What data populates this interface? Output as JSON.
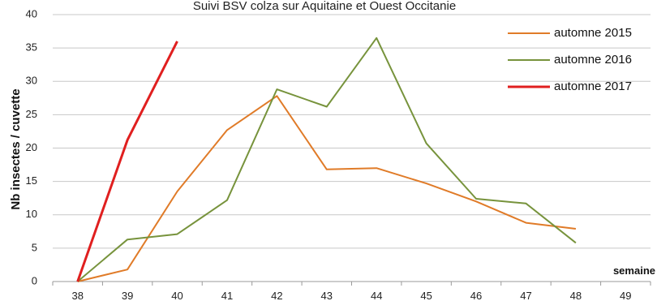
{
  "chart_data": {
    "type": "line",
    "title": "Suivi BSV colza sur Aquitaine et Ouest Occitanie",
    "xlabel": "semaine",
    "ylabel": "Nb insectes / cuvette",
    "categories": [
      "38",
      "39",
      "40",
      "41",
      "42",
      "43",
      "44",
      "45",
      "46",
      "47",
      "48",
      "49"
    ],
    "ylim": [
      0,
      40
    ],
    "yticks": [
      0,
      5,
      10,
      15,
      20,
      25,
      30,
      35,
      40
    ],
    "grid": true,
    "legend_position": "top-right",
    "series": [
      {
        "name": "automne 2015",
        "color": "#e07b28",
        "values": [
          0,
          1.8,
          13.5,
          22.7,
          27.8,
          16.8,
          17.0,
          14.7,
          12.0,
          8.8,
          7.9,
          null
        ]
      },
      {
        "name": "automne 2016",
        "color": "#77933c",
        "values": [
          0,
          6.3,
          7.1,
          12.2,
          28.8,
          26.2,
          36.5,
          20.7,
          12.4,
          11.7,
          5.8,
          null
        ]
      },
      {
        "name": "automne 2017",
        "color": "#e01f1f",
        "values": [
          0,
          21.2,
          36.0,
          null,
          null,
          null,
          null,
          null,
          null,
          null,
          null,
          null
        ]
      }
    ]
  }
}
